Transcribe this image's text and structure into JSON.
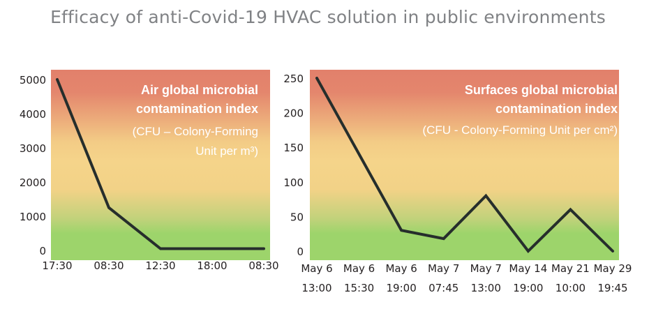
{
  "title": "Efficacy of anti-Covid-19 HVAC solution in public environments",
  "colors": {
    "top": "#e2806b",
    "mid": "#f5d48a",
    "bottom": "#9dd46b",
    "line": "#262e2c"
  },
  "chart_data": [
    {
      "type": "line",
      "annotation": [
        "Air global microbial",
        "contamination index"
      ],
      "unit_note": [
        "(CFU – Colony-Forming",
        "Unit per m³)"
      ],
      "categories": [
        "17:30",
        "08:30",
        "12:30",
        "18:00",
        "08:30"
      ],
      "x_labels": [
        [
          "17:30"
        ],
        [
          "08:30"
        ],
        [
          "12:30"
        ],
        [
          "18:00"
        ],
        [
          "08:30"
        ]
      ],
      "values": [
        5000,
        1250,
        50,
        50,
        50
      ],
      "point_index": [
        0,
        1,
        2,
        3,
        4
      ],
      "ylim": [
        0,
        5000
      ],
      "yticks": [
        "0",
        "1000",
        "2000",
        "3000",
        "4000",
        "5000"
      ],
      "grid": false
    },
    {
      "type": "line",
      "annotation": [
        "Surfaces global microbial",
        "contamination index"
      ],
      "unit_note": [
        "(CFU - Colony-Forming Unit per cm²)"
      ],
      "categories": [
        "May 6 13:00",
        "May 6 15:30",
        "May 6 19:00",
        "May 7 07:45",
        "May 7 13:00",
        "May 14 19:00",
        "May 21 10:00",
        "May 29 19:45"
      ],
      "x_labels": [
        [
          "May 6",
          "13:00"
        ],
        [
          "May 6",
          "15:30"
        ],
        [
          "May 6",
          "19:00"
        ],
        [
          "May 7",
          "07:45"
        ],
        [
          "May 7",
          "13:00"
        ],
        [
          "May 14",
          "19:00"
        ],
        [
          "May 21",
          "10:00"
        ],
        [
          "May 29",
          "19:45"
        ]
      ],
      "values": [
        250,
        140,
        30,
        18,
        80,
        0,
        60,
        0
      ],
      "point_index": [
        0,
        1,
        2,
        3,
        4,
        5,
        6,
        7
      ],
      "ylim": [
        0,
        250
      ],
      "yticks": [
        "0",
        "50",
        "100",
        "150",
        "200",
        "250"
      ],
      "grid": false
    }
  ]
}
